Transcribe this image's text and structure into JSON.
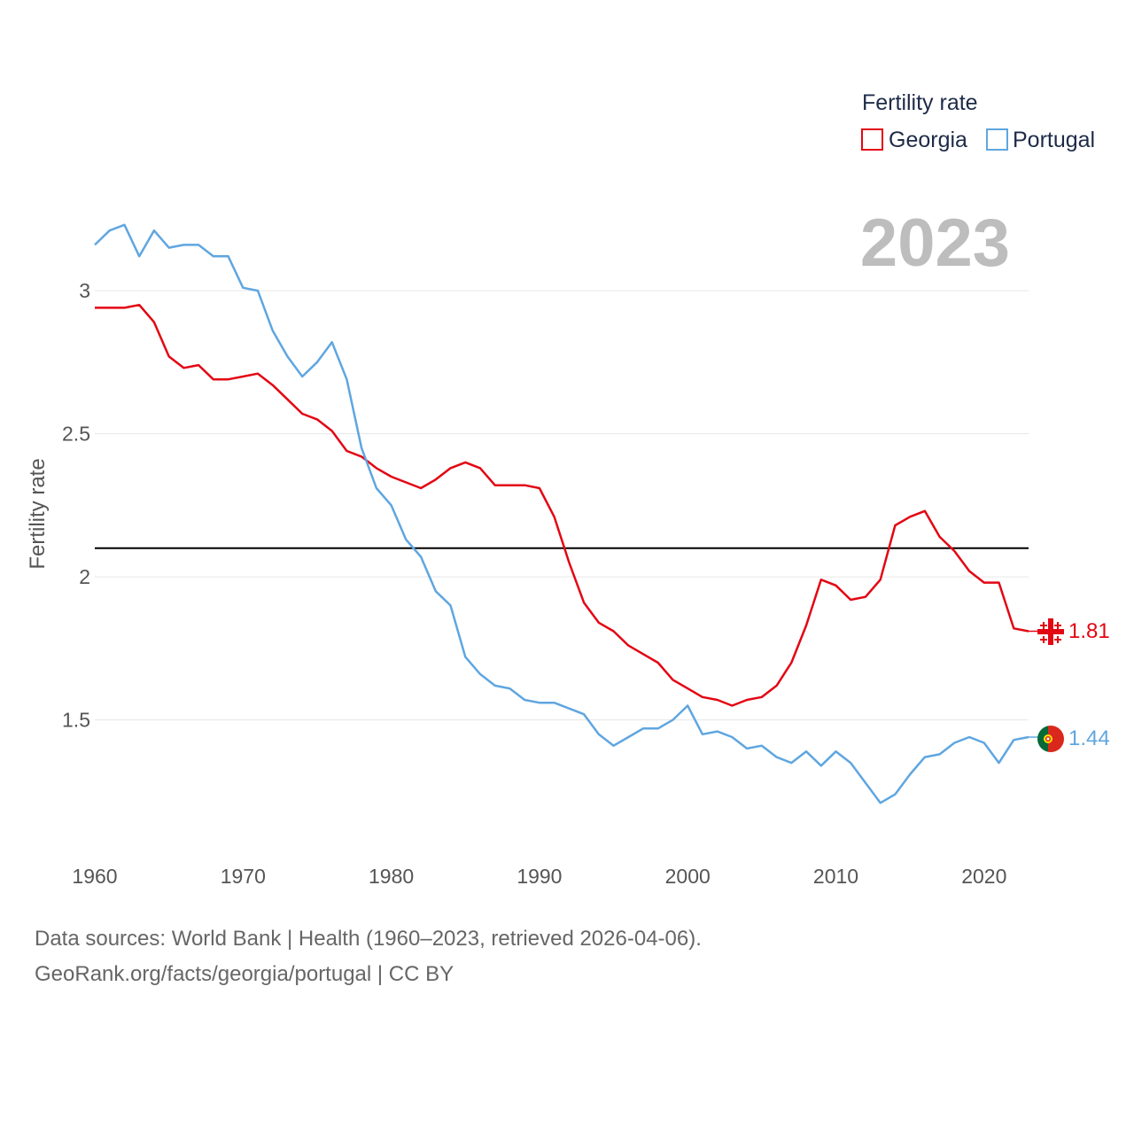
{
  "chart_data": {
    "type": "line",
    "ylabel": "Fertility rate",
    "xlabel": "",
    "xlim": [
      1960,
      2023
    ],
    "ylim": [
      1.05,
      3.35
    ],
    "x_ticks": [
      1960,
      1970,
      1980,
      1990,
      2000,
      2010,
      2020
    ],
    "y_ticks": [
      1.5,
      2,
      2.5,
      3
    ],
    "y_tick_labels": [
      "1.5",
      "2",
      "2.5",
      "3"
    ],
    "x_tick_labels": [
      "1960",
      "1970",
      "1980",
      "1990",
      "2000",
      "2010",
      "2020"
    ],
    "reference_line": 2.1,
    "grid": true,
    "year_badge": "2023",
    "legend": {
      "title": "Fertility rate",
      "position": "top-right",
      "entries": [
        "Georgia",
        "Portugal"
      ]
    },
    "x": [
      1960,
      1961,
      1962,
      1963,
      1964,
      1965,
      1966,
      1967,
      1968,
      1969,
      1970,
      1971,
      1972,
      1973,
      1974,
      1975,
      1976,
      1977,
      1978,
      1979,
      1980,
      1981,
      1982,
      1983,
      1984,
      1985,
      1986,
      1987,
      1988,
      1989,
      1990,
      1991,
      1992,
      1993,
      1994,
      1995,
      1996,
      1997,
      1998,
      1999,
      2000,
      2001,
      2002,
      2003,
      2004,
      2005,
      2006,
      2007,
      2008,
      2009,
      2010,
      2011,
      2012,
      2013,
      2014,
      2015,
      2016,
      2017,
      2018,
      2019,
      2020,
      2021,
      2022,
      2023
    ],
    "series": [
      {
        "name": "Georgia",
        "color": "#e30613",
        "end_label": "1.81",
        "values": [
          2.94,
          2.94,
          2.94,
          2.95,
          2.89,
          2.77,
          2.73,
          2.74,
          2.69,
          2.69,
          2.7,
          2.71,
          2.67,
          2.62,
          2.57,
          2.55,
          2.51,
          2.44,
          2.42,
          2.38,
          2.35,
          2.33,
          2.31,
          2.34,
          2.38,
          2.4,
          2.38,
          2.32,
          2.32,
          2.32,
          2.31,
          2.21,
          2.05,
          1.91,
          1.84,
          1.81,
          1.76,
          1.73,
          1.7,
          1.64,
          1.61,
          1.58,
          1.57,
          1.55,
          1.57,
          1.58,
          1.62,
          1.7,
          1.83,
          1.99,
          1.97,
          1.92,
          1.93,
          1.99,
          2.18,
          2.21,
          2.23,
          2.14,
          2.09,
          2.02,
          1.98,
          1.98,
          1.82,
          1.81
        ]
      },
      {
        "name": "Portugal",
        "color": "#5fa6e0",
        "end_label": "1.44",
        "values": [
          3.16,
          3.21,
          3.23,
          3.12,
          3.21,
          3.15,
          3.16,
          3.16,
          3.12,
          3.12,
          3.01,
          3.0,
          2.86,
          2.77,
          2.7,
          2.75,
          2.82,
          2.69,
          2.45,
          2.31,
          2.25,
          2.13,
          2.07,
          1.95,
          1.9,
          1.72,
          1.66,
          1.62,
          1.61,
          1.57,
          1.56,
          1.56,
          1.54,
          1.52,
          1.45,
          1.41,
          1.44,
          1.47,
          1.47,
          1.5,
          1.55,
          1.45,
          1.46,
          1.44,
          1.4,
          1.41,
          1.37,
          1.35,
          1.39,
          1.34,
          1.39,
          1.35,
          1.28,
          1.21,
          1.24,
          1.31,
          1.37,
          1.38,
          1.42,
          1.44,
          1.42,
          1.35,
          1.43,
          1.44
        ]
      }
    ]
  },
  "footer": {
    "line1": "Data sources: World Bank | Health (1960–2023, retrieved 2026-04-06).",
    "line2": "GeoRank.org/facts/georgia/portugal | CC BY"
  }
}
